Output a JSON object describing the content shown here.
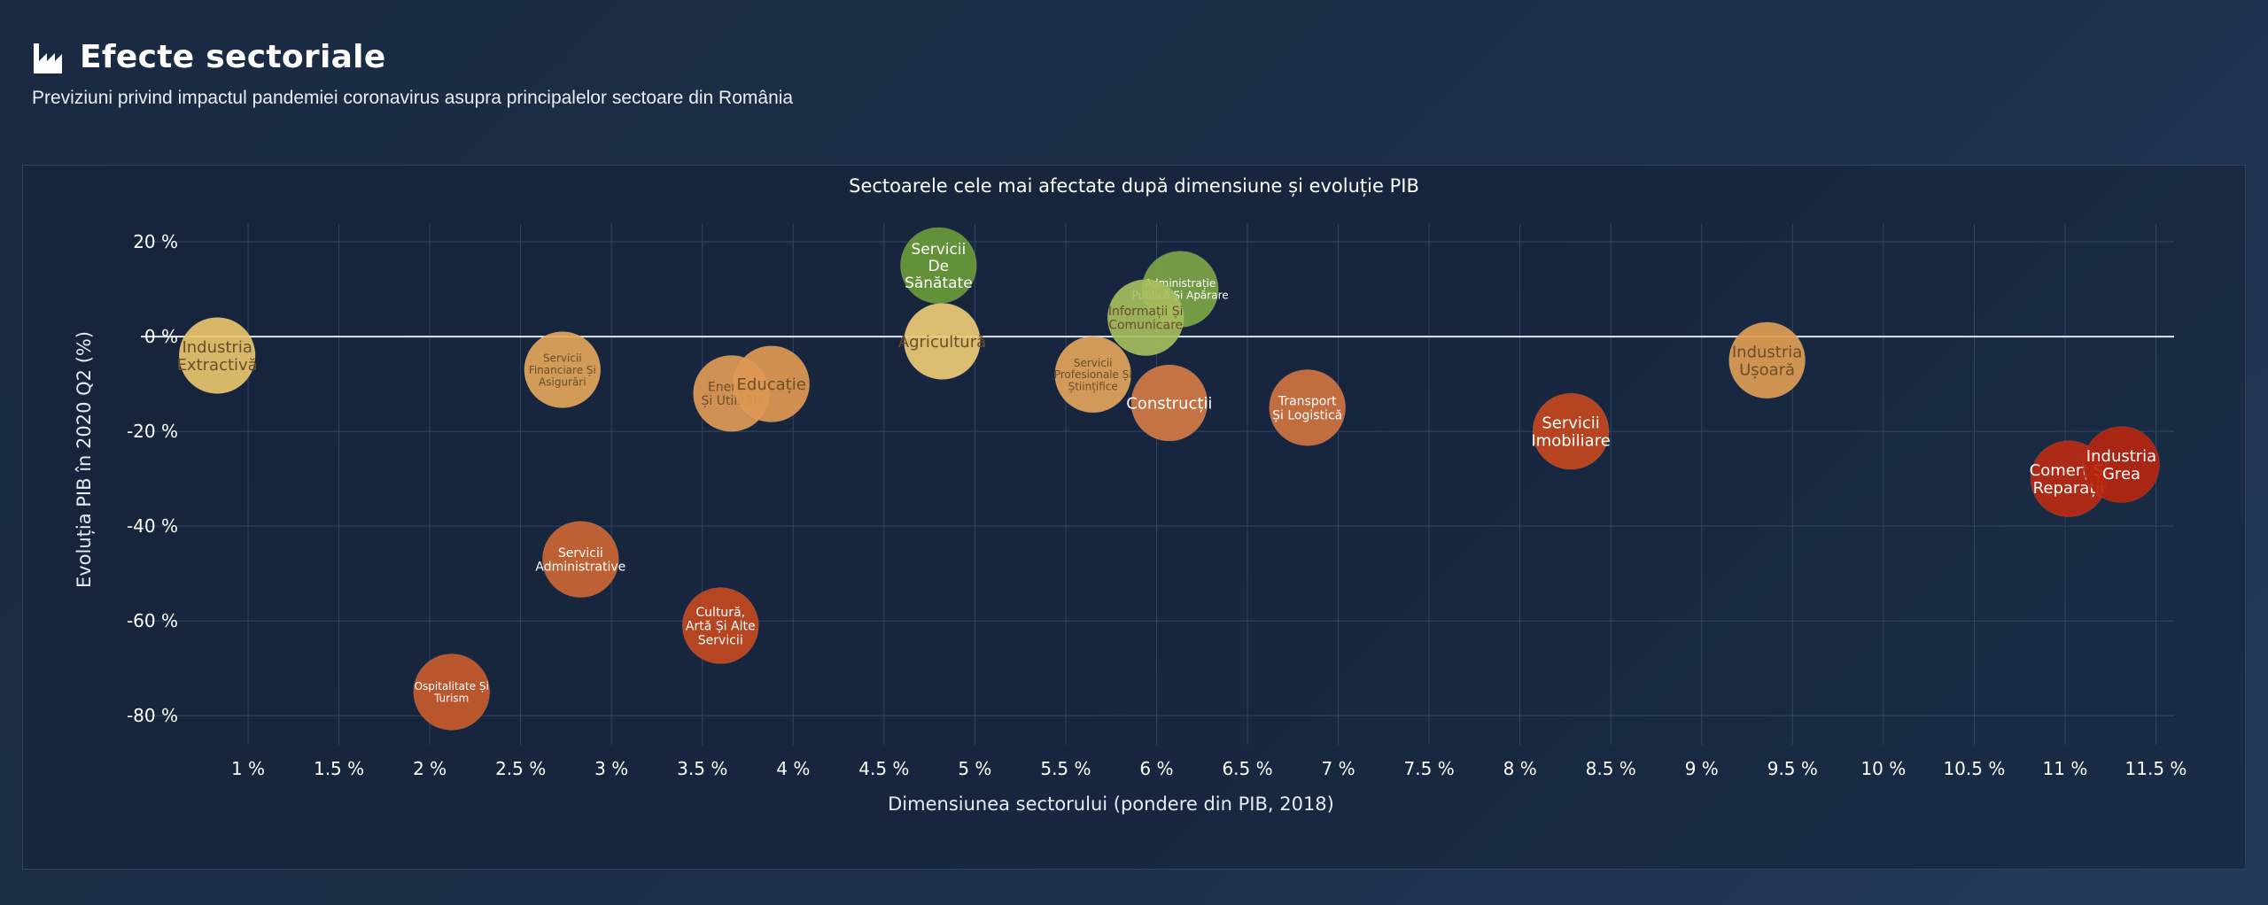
{
  "header": {
    "title": "Efecte sectoriale",
    "subtitle": "Previziuni privind impactul pandemiei coronavirus asupra principalelor sectoare din România",
    "icon": "factory-chart-icon"
  },
  "chart_data": {
    "type": "scatter",
    "title": "Sectoarele cele mai afectate după dimensiune și evoluție PIB",
    "xlabel": "Dimensiunea sectorului (pondere din PIB, 2018)",
    "ylabel": "Evoluția PIB în 2020 Q2 (%)",
    "xlim": [
      0.8,
      11.6
    ],
    "ylim": [
      -85,
      23
    ],
    "x_ticks": [
      1,
      1.5,
      2,
      2.5,
      3,
      3.5,
      4,
      4.5,
      5,
      5.5,
      6,
      6.5,
      7,
      7.5,
      8,
      8.5,
      9,
      9.5,
      10,
      10.5,
      11,
      11.5
    ],
    "x_tick_labels": [
      "1 %",
      "1.5 %",
      "2 %",
      "2.5 %",
      "3 %",
      "3.5 %",
      "4 %",
      "4.5 %",
      "5 %",
      "5.5 %",
      "6 %",
      "6.5 %",
      "7 %",
      "7.5 %",
      "8 %",
      "8.5 %",
      "9 %",
      "9.5 %",
      "10 %",
      "10.5 %",
      "11 %",
      "11.5 %"
    ],
    "y_ticks": [
      20,
      0,
      -20,
      -40,
      -60,
      -80
    ],
    "y_tick_labels": [
      "20 %",
      "0 %",
      "-20 %",
      "-40 %",
      "-60 %",
      "-80 %"
    ],
    "grid": true,
    "zero_line": true,
    "points": [
      {
        "label": "Industria\nExtractivă",
        "x": 0.83,
        "y": -4,
        "color": "#e8c46e"
      },
      {
        "label": "Servicii\nFinanciare Și\nAsigurări",
        "x": 2.73,
        "y": -7,
        "color": "#e3a65a"
      },
      {
        "label": "Energie\nȘi Utilități",
        "x": 3.66,
        "y": -12,
        "color": "#e09a55"
      },
      {
        "label": "Educație",
        "x": 3.88,
        "y": -10,
        "color": "#de9852"
      },
      {
        "label": "Servicii\nDe\nSănătate",
        "x": 4.8,
        "y": 15,
        "color": "#6a9a3a"
      },
      {
        "label": "Agricultură",
        "x": 4.82,
        "y": -1,
        "color": "#ecca74"
      },
      {
        "label": "Administrație\nPublică Și Apărare",
        "x": 6.13,
        "y": 10,
        "color": "#7ea446"
      },
      {
        "label": "Informații Și\nComunicare",
        "x": 5.94,
        "y": 4,
        "color": "#a6bd5e"
      },
      {
        "label": "Servicii\nProfesionale Și\nȘtiințifice",
        "x": 5.65,
        "y": -8,
        "color": "#e3a45a"
      },
      {
        "label": "Construcții",
        "x": 6.07,
        "y": -14,
        "color": "#d27a44"
      },
      {
        "label": "Transport\nȘi Logistică",
        "x": 6.83,
        "y": -15,
        "color": "#d0733f"
      },
      {
        "label": "Servicii\nAdministrative",
        "x": 2.83,
        "y": -47,
        "color": "#cc6633"
      },
      {
        "label": "Cultură,\nArtă Și Alte\nServicii",
        "x": 3.6,
        "y": -61,
        "color": "#c44820"
      },
      {
        "label": "Ospitalitate Și\nTurism",
        "x": 2.12,
        "y": -75,
        "color": "#c85a2c"
      },
      {
        "label": "Servicii\nImobiliare",
        "x": 8.28,
        "y": -20,
        "color": "#c4461e"
      },
      {
        "label": "Industria\nUșoară",
        "x": 9.36,
        "y": -5,
        "color": "#df9d52"
      },
      {
        "label": "Comerț Și\nReparații",
        "x": 11.02,
        "y": -30,
        "color": "#b82a12"
      },
      {
        "label": "Industria\nGrea",
        "x": 11.31,
        "y": -27,
        "color": "#b52610"
      }
    ]
  }
}
